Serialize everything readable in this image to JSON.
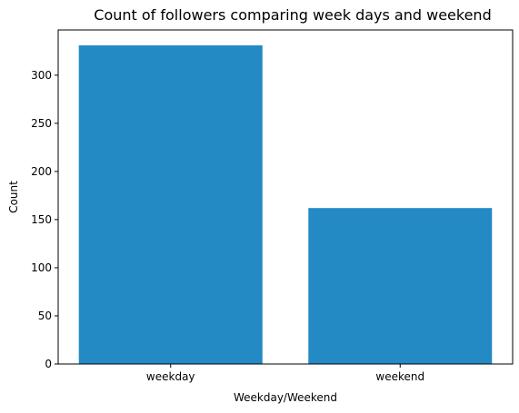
{
  "chart_data": {
    "type": "bar",
    "title": "Count of followers comparing week days and weekend",
    "xlabel": "Weekday/Weekend",
    "ylabel": "Count",
    "categories": [
      "weekday",
      "weekend"
    ],
    "values": [
      331,
      162
    ],
    "ylim": [
      0,
      347
    ],
    "yticks": [
      0,
      50,
      100,
      150,
      200,
      250,
      300
    ],
    "bar_color": "#238ac4",
    "grid": false,
    "legend": "none"
  }
}
